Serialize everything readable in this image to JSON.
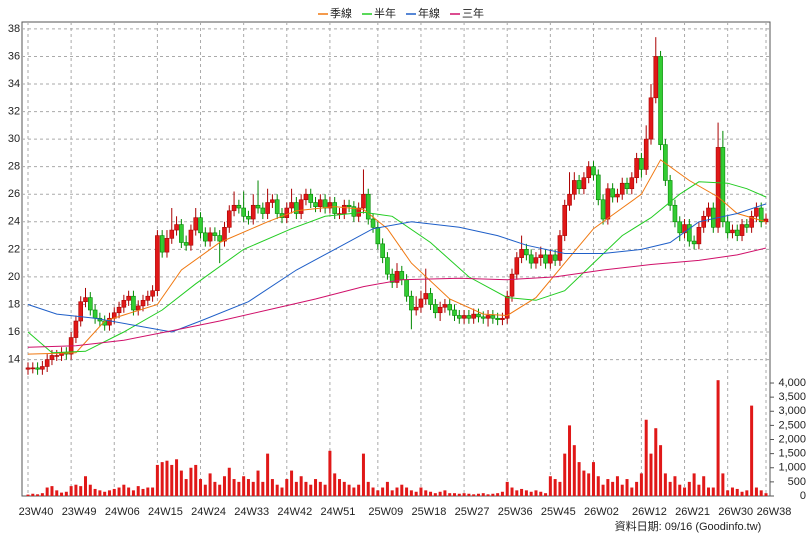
{
  "chart_data": {
    "type": "candlestick",
    "legend": [
      "季線",
      "半年",
      "年線",
      "三年"
    ],
    "footer": "資料日期: 09/16  (Goodinfo.tw)",
    "up_color": "#e01818",
    "down_color": "#33cc33",
    "volume_color": "#e01818",
    "grid": true,
    "categories": [
      "23W40",
      null,
      null,
      null,
      null,
      null,
      null,
      null,
      null,
      "23W49",
      null,
      null,
      null,
      null,
      null,
      null,
      null,
      null,
      "24W06",
      null,
      null,
      null,
      null,
      null,
      null,
      null,
      null,
      "24W15",
      null,
      null,
      null,
      null,
      null,
      null,
      null,
      null,
      "24W24",
      null,
      null,
      null,
      null,
      null,
      null,
      null,
      null,
      "24W33",
      null,
      null,
      null,
      null,
      null,
      null,
      null,
      null,
      "24W42",
      null,
      null,
      null,
      null,
      null,
      null,
      null,
      null,
      "24W51",
      null,
      null,
      null,
      null,
      null,
      null,
      null,
      null,
      null,
      "25W09",
      null,
      null,
      null,
      null,
      null,
      null,
      null,
      null,
      "25W18",
      null,
      null,
      null,
      null,
      null,
      null,
      null,
      null,
      "25W27",
      null,
      null,
      null,
      null,
      null,
      null,
      null,
      null,
      "25W36",
      null,
      null,
      null,
      null,
      null,
      null,
      null,
      null,
      "25W45",
      null,
      null,
      null,
      null,
      null,
      null,
      null,
      null,
      "26W02",
      null,
      null,
      null,
      null,
      null,
      null,
      null,
      null,
      null,
      "26W12",
      null,
      null,
      null,
      null,
      null,
      null,
      null,
      null,
      "26W21",
      null,
      null,
      null,
      null,
      null,
      null,
      null,
      null,
      "26W30",
      null,
      null,
      null,
      null,
      null,
      null,
      null,
      "26W38"
    ],
    "open": [
      13.3,
      13.4,
      13.4,
      13.3,
      13.5,
      14.0,
      14.3,
      14.3,
      14.5,
      14.4,
      15.6,
      16.8,
      18.2,
      18.5,
      17.6,
      17.0,
      16.8,
      16.5,
      17.0,
      17.4,
      17.8,
      18.3,
      18.6,
      17.6,
      17.9,
      18.3,
      18.6,
      19.0,
      23.0,
      21.8,
      22.8,
      23.4,
      23.8,
      22.5,
      22.3,
      23.4,
      24.3,
      23.2,
      22.6,
      23.2,
      23.0,
      22.6,
      23.6,
      24.8,
      25.2,
      25.0,
      24.4,
      24.2,
      25.2,
      25.0,
      24.6,
      25.4,
      25.6,
      24.6,
      24.3,
      25.0,
      25.4,
      24.6,
      25.6,
      26.0,
      25.4,
      25.1,
      25.6,
      25.0,
      25.4,
      24.6,
      24.6,
      25.2,
      25.1,
      24.4,
      25.0,
      26.0,
      24.2,
      23.6,
      22.4,
      21.4,
      20.2,
      19.6,
      20.4,
      19.8,
      18.6,
      17.6,
      17.8,
      18.4,
      18.8,
      18.0,
      17.4,
      17.8,
      18.0,
      17.6,
      17.2,
      17.0,
      17.2,
      17.0,
      17.3,
      17.1,
      17.0,
      17.2,
      17.0,
      16.9,
      17.0,
      18.6,
      20.2,
      21.4,
      22.0,
      21.6,
      21.0,
      21.4,
      21.6,
      21.0,
      21.6,
      21.2,
      23.0,
      25.2,
      26.0,
      27.0,
      26.4,
      27.2,
      28.0,
      27.4,
      25.6,
      24.2,
      26.4,
      25.8,
      26.0,
      26.8,
      26.4,
      27.2,
      28.6,
      27.8,
      30.0,
      33.0,
      36.0,
      29.6,
      27.0,
      25.2,
      24.0,
      23.2,
      23.8,
      22.6,
      22.4,
      23.6,
      24.4,
      25.0,
      23.6,
      29.4,
      24.0,
      23.2,
      23.4,
      23.0,
      23.8,
      23.6,
      24.4,
      25.0,
      24.0
    ],
    "high": [
      13.8,
      13.8,
      13.8,
      13.9,
      14.4,
      14.7,
      14.7,
      14.9,
      14.9,
      16.0,
      17.2,
      18.6,
      19.2,
      18.9,
      18.0,
      17.4,
      17.2,
      17.4,
      17.8,
      18.2,
      18.7,
      19.0,
      19.0,
      18.3,
      18.7,
      19.0,
      19.4,
      23.4,
      23.4,
      23.4,
      25.0,
      24.4,
      24.2,
      23.0,
      23.8,
      25.0,
      24.7,
      23.6,
      23.6,
      23.6,
      23.4,
      24.0,
      25.2,
      26.2,
      25.6,
      26.2,
      24.8,
      26.0,
      27.0,
      25.4,
      26.4,
      26.0,
      26.0,
      25.0,
      25.4,
      26.4,
      25.8,
      26.0,
      26.4,
      26.4,
      25.8,
      26.0,
      26.0,
      25.8,
      25.8,
      25.0,
      25.6,
      25.6,
      25.5,
      25.4,
      27.8,
      26.4,
      24.6,
      24.0,
      22.8,
      21.8,
      20.6,
      21.0,
      20.8,
      20.2,
      19.0,
      18.6,
      19.0,
      20.6,
      19.2,
      18.4,
      18.2,
      18.4,
      18.4,
      18.0,
      17.6,
      17.6,
      17.6,
      17.7,
      17.7,
      17.5,
      17.6,
      17.6,
      17.4,
      17.4,
      19.0,
      20.6,
      21.8,
      23.0,
      22.4,
      22.0,
      21.8,
      22.2,
      22.0,
      22.0,
      22.0,
      23.4,
      25.6,
      27.6,
      27.6,
      27.4,
      27.6,
      28.4,
      28.4,
      27.8,
      26.0,
      26.8,
      26.8,
      26.4,
      27.2,
      27.2,
      27.6,
      29.0,
      29.0,
      31.0,
      34.0,
      37.4,
      36.4,
      30.0,
      27.4,
      25.6,
      24.4,
      24.2,
      24.2,
      23.0,
      24.0,
      24.8,
      25.4,
      25.4,
      31.2,
      30.6,
      24.4,
      23.8,
      23.8,
      24.2,
      24.2,
      24.8,
      25.4,
      25.4,
      24.6
    ],
    "low": [
      12.9,
      13.0,
      12.9,
      12.9,
      13.1,
      13.6,
      13.9,
      13.9,
      14.0,
      14.0,
      15.2,
      16.4,
      17.8,
      17.2,
      16.6,
      16.4,
      16.1,
      16.1,
      16.6,
      17.0,
      17.4,
      17.9,
      17.2,
      17.2,
      17.5,
      17.9,
      18.2,
      18.6,
      21.4,
      21.4,
      22.4,
      23.0,
      22.1,
      21.9,
      21.9,
      23.0,
      22.8,
      22.2,
      22.2,
      22.6,
      21.0,
      22.2,
      23.2,
      24.4,
      24.6,
      24.0,
      23.8,
      23.8,
      24.6,
      24.2,
      24.2,
      25.0,
      24.2,
      23.9,
      23.9,
      24.6,
      24.2,
      24.2,
      25.2,
      25.0,
      24.7,
      24.7,
      24.6,
      24.6,
      24.2,
      24.2,
      24.2,
      24.7,
      24.0,
      24.0,
      24.6,
      23.8,
      23.2,
      22.0,
      21.0,
      19.8,
      19.2,
      19.2,
      19.4,
      18.2,
      16.2,
      17.2,
      17.4,
      18.0,
      17.6,
      17.0,
      16.8,
      17.4,
      17.2,
      16.8,
      16.6,
      16.6,
      16.6,
      16.6,
      16.7,
      16.6,
      16.4,
      16.6,
      16.5,
      16.5,
      16.6,
      18.2,
      19.8,
      21.0,
      21.2,
      20.6,
      20.6,
      20.8,
      20.6,
      20.6,
      20.8,
      20.8,
      22.6,
      24.8,
      25.6,
      26.0,
      26.0,
      26.8,
      27.0,
      25.2,
      23.8,
      23.8,
      25.4,
      25.4,
      25.6,
      26.0,
      26.0,
      26.8,
      27.2,
      27.4,
      29.6,
      32.6,
      29.2,
      26.6,
      24.8,
      23.6,
      22.6,
      22.8,
      22.2,
      22.0,
      22.0,
      23.2,
      24.0,
      23.2,
      23.2,
      23.6,
      22.8,
      22.8,
      22.6,
      22.6,
      23.2,
      23.2,
      24.0,
      23.6,
      23.8
    ],
    "close": [
      13.4,
      13.4,
      13.3,
      13.5,
      14.0,
      14.3,
      14.3,
      14.5,
      14.4,
      15.6,
      16.8,
      18.2,
      18.5,
      17.6,
      17.0,
      16.8,
      16.5,
      17.0,
      17.4,
      17.8,
      18.3,
      18.6,
      17.6,
      17.9,
      18.3,
      18.6,
      19.0,
      23.0,
      21.8,
      22.8,
      23.4,
      23.8,
      22.5,
      22.3,
      23.4,
      24.3,
      23.2,
      22.6,
      23.2,
      23.0,
      22.6,
      23.6,
      24.8,
      25.2,
      25.0,
      24.4,
      24.2,
      25.2,
      25.0,
      24.6,
      25.4,
      25.6,
      24.6,
      24.3,
      25.0,
      25.4,
      24.6,
      25.6,
      26.0,
      25.4,
      25.1,
      25.6,
      25.0,
      25.4,
      24.6,
      24.6,
      25.2,
      25.1,
      24.4,
      25.0,
      26.0,
      24.2,
      23.6,
      22.4,
      21.4,
      20.2,
      19.6,
      20.4,
      19.8,
      18.6,
      17.6,
      17.8,
      18.4,
      18.8,
      18.0,
      17.4,
      17.8,
      18.0,
      17.6,
      17.2,
      17.0,
      17.2,
      17.0,
      17.3,
      17.1,
      17.0,
      17.2,
      17.0,
      16.9,
      17.0,
      18.6,
      20.2,
      21.4,
      22.0,
      21.6,
      21.0,
      21.4,
      21.6,
      21.0,
      21.6,
      21.2,
      23.0,
      25.2,
      26.0,
      27.0,
      26.4,
      27.2,
      28.0,
      27.4,
      25.6,
      24.2,
      26.4,
      25.8,
      26.0,
      26.8,
      26.4,
      27.2,
      28.6,
      27.8,
      30.0,
      33.0,
      36.0,
      29.6,
      27.0,
      25.2,
      24.0,
      23.2,
      23.8,
      22.6,
      22.4,
      23.6,
      24.4,
      25.0,
      23.6,
      29.4,
      24.0,
      23.2,
      23.4,
      23.0,
      23.8,
      23.6,
      24.4,
      25.0,
      24.0,
      24.2
    ],
    "volume": [
      50,
      80,
      60,
      100,
      300,
      350,
      200,
      120,
      150,
      350,
      400,
      350,
      700,
      400,
      250,
      200,
      150,
      200,
      250,
      300,
      400,
      300,
      200,
      350,
      250,
      300,
      300,
      1100,
      1200,
      1250,
      1100,
      1300,
      900,
      600,
      1000,
      1100,
      600,
      400,
      800,
      500,
      400,
      700,
      1000,
      600,
      500,
      700,
      600,
      500,
      900,
      500,
      1500,
      600,
      400,
      300,
      600,
      900,
      500,
      700,
      500,
      400,
      600,
      500,
      400,
      1600,
      800,
      600,
      500,
      400,
      300,
      400,
      1500,
      500,
      300,
      200,
      300,
      500,
      200,
      300,
      400,
      300,
      200,
      150,
      300,
      200,
      150,
      100,
      150,
      200,
      100,
      100,
      80,
      100,
      80,
      60,
      80,
      100,
      60,
      80,
      100,
      150,
      500,
      300,
      200,
      250,
      200,
      150,
      200,
      150,
      100,
      700,
      600,
      500,
      1500,
      2500,
      1800,
      1200,
      900,
      800,
      1200,
      700,
      400,
      600,
      500,
      700,
      400,
      600,
      300,
      500,
      800,
      2700,
      1500,
      2400,
      1800,
      800,
      500,
      700,
      400,
      300,
      500,
      800,
      400,
      700,
      300,
      300,
      4100,
      800,
      200,
      300,
      250,
      150,
      200,
      3200,
      300,
      200,
      100
    ],
    "moving_averages": [
      {
        "name": "季線",
        "color": "#f07810",
        "x": [
          0,
          10,
          16,
          27,
          32,
          40,
          50,
          56,
          64,
          70,
          75,
          80,
          88,
          95,
          100,
          106,
          112,
          118,
          124,
          128,
          132,
          138,
          144,
          148,
          154
        ],
        "values": [
          14.4,
          14.5,
          16.8,
          18.0,
          20.5,
          22.5,
          24.0,
          24.8,
          25.1,
          24.9,
          23.5,
          21.0,
          18.4,
          17.3,
          17.2,
          18.5,
          21.0,
          23.5,
          25.0,
          26.0,
          28.5,
          27.0,
          25.8,
          24.6,
          24.0
        ]
      },
      {
        "name": "半年",
        "color": "#22cc22",
        "x": [
          0,
          5,
          12,
          20,
          28,
          35,
          45,
          55,
          62,
          70,
          76,
          84,
          92,
          100,
          106,
          112,
          118,
          124,
          130,
          136,
          140,
          146,
          150,
          154
        ],
        "values": [
          16.0,
          14.5,
          14.6,
          16.0,
          17.6,
          19.5,
          22.0,
          23.5,
          24.4,
          24.7,
          24.4,
          22.5,
          20.0,
          18.5,
          18.3,
          19.0,
          21.0,
          23.0,
          24.3,
          26.0,
          26.9,
          26.8,
          26.4,
          25.8
        ]
      },
      {
        "name": "年線",
        "color": "#1f5fc8",
        "x": [
          0,
          6,
          14,
          22,
          30,
          36,
          46,
          56,
          64,
          72,
          80,
          90,
          98,
          104,
          112,
          120,
          128,
          134,
          140,
          148,
          154
        ],
        "values": [
          18.0,
          17.3,
          17.0,
          16.5,
          16.0,
          16.8,
          18.2,
          20.5,
          22.0,
          23.5,
          24.0,
          23.6,
          23.0,
          22.3,
          21.7,
          21.7,
          22.0,
          22.5,
          24.0,
          24.6,
          25.3
        ]
      },
      {
        "name": "三年",
        "color": "#d0106a",
        "x": [
          0,
          10,
          20,
          30,
          40,
          50,
          60,
          70,
          78,
          90,
          100,
          110,
          120,
          130,
          140,
          148,
          154
        ],
        "values": [
          14.9,
          15.0,
          15.4,
          16.1,
          16.8,
          17.6,
          18.4,
          19.3,
          19.8,
          19.9,
          19.8,
          20.0,
          20.5,
          20.9,
          21.2,
          21.6,
          22.1
        ]
      }
    ],
    "ylim": [
      13.1,
      38.5
    ],
    "yticks": [
      14,
      16,
      18,
      20,
      22,
      24,
      26,
      28,
      30,
      32,
      34,
      36,
      38
    ],
    "volume_ylim": [
      0,
      4390
    ],
    "volume_yticks": [
      0,
      500,
      {
        "value": 1000,
        "label": "1,000"
      },
      {
        "value": 1500,
        "label": "1,500"
      },
      {
        "value": 2000,
        "label": "2,000"
      },
      {
        "value": 2500,
        "label": "2,500"
      },
      {
        "value": 3000,
        "label": "3,000"
      },
      {
        "value": 3500,
        "label": "3,500"
      },
      {
        "value": 4000,
        "label": "4,000"
      }
    ]
  }
}
